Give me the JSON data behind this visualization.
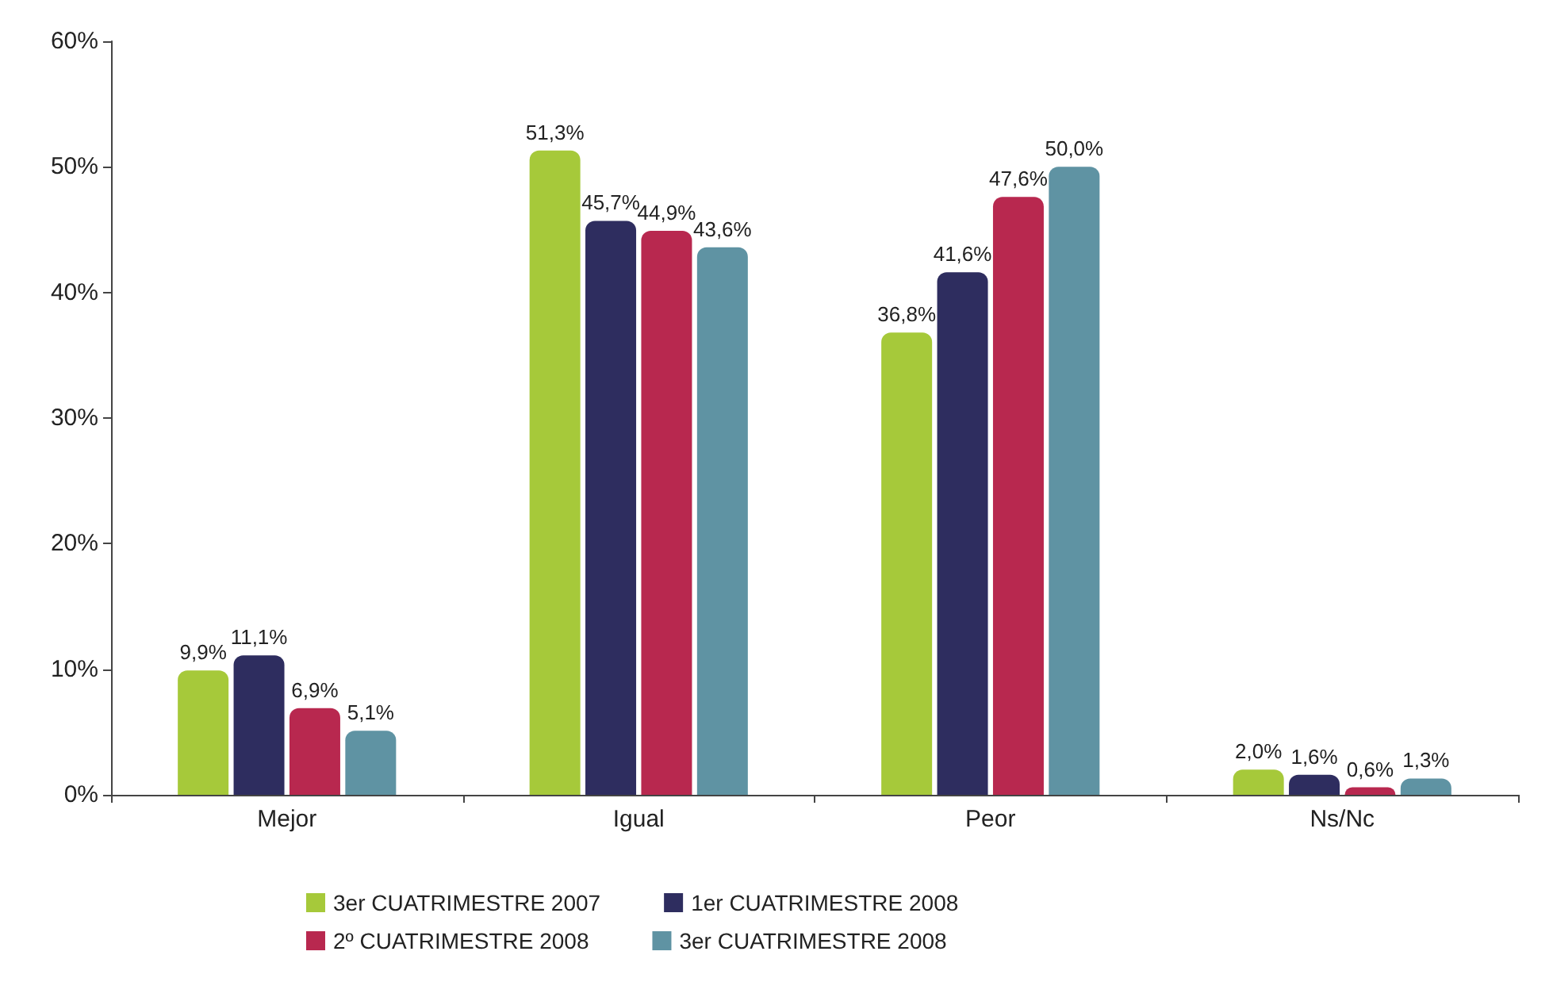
{
  "chart_data": {
    "type": "bar",
    "categories": [
      "Mejor",
      "Igual",
      "Peor",
      "Ns/Nc"
    ],
    "series": [
      {
        "name": "3er CUATRIMESTRE 2007",
        "color": "#a6c93a",
        "values": [
          9.9,
          51.3,
          36.8,
          2.0
        ],
        "value_labels": [
          "9,9%",
          "51,3%",
          "36,8%",
          "2,0%"
        ]
      },
      {
        "name": "1er CUATRIMESTRE 2008",
        "color": "#2e2d5f",
        "values": [
          11.1,
          45.7,
          41.6,
          1.6
        ],
        "value_labels": [
          "11,1%",
          "45,7%",
          "41,6%",
          "1,6%"
        ]
      },
      {
        "name": "2º CUATRIMESTRE 2008",
        "color": "#b8284f",
        "values": [
          6.9,
          44.9,
          47.6,
          0.6
        ],
        "value_labels": [
          "6,9%",
          "44,9%",
          "47,6%",
          "0,6%"
        ]
      },
      {
        "name": "3er CUATRIMESTRE 2008",
        "color": "#5f93a3",
        "values": [
          5.1,
          43.6,
          50.0,
          1.3
        ],
        "value_labels": [
          "5,1%",
          "43,6%",
          "50,0%",
          "1,3%"
        ]
      }
    ],
    "ylim": [
      0,
      60
    ],
    "yticks": [
      {
        "value": 0,
        "label": "0%"
      },
      {
        "value": 10,
        "label": "10%"
      },
      {
        "value": 20,
        "label": "20%"
      },
      {
        "value": 30,
        "label": "30%"
      },
      {
        "value": 40,
        "label": "40%"
      },
      {
        "value": 50,
        "label": "50%"
      },
      {
        "value": 60,
        "label": "60%"
      }
    ],
    "grid": false,
    "legend": "bottom"
  }
}
